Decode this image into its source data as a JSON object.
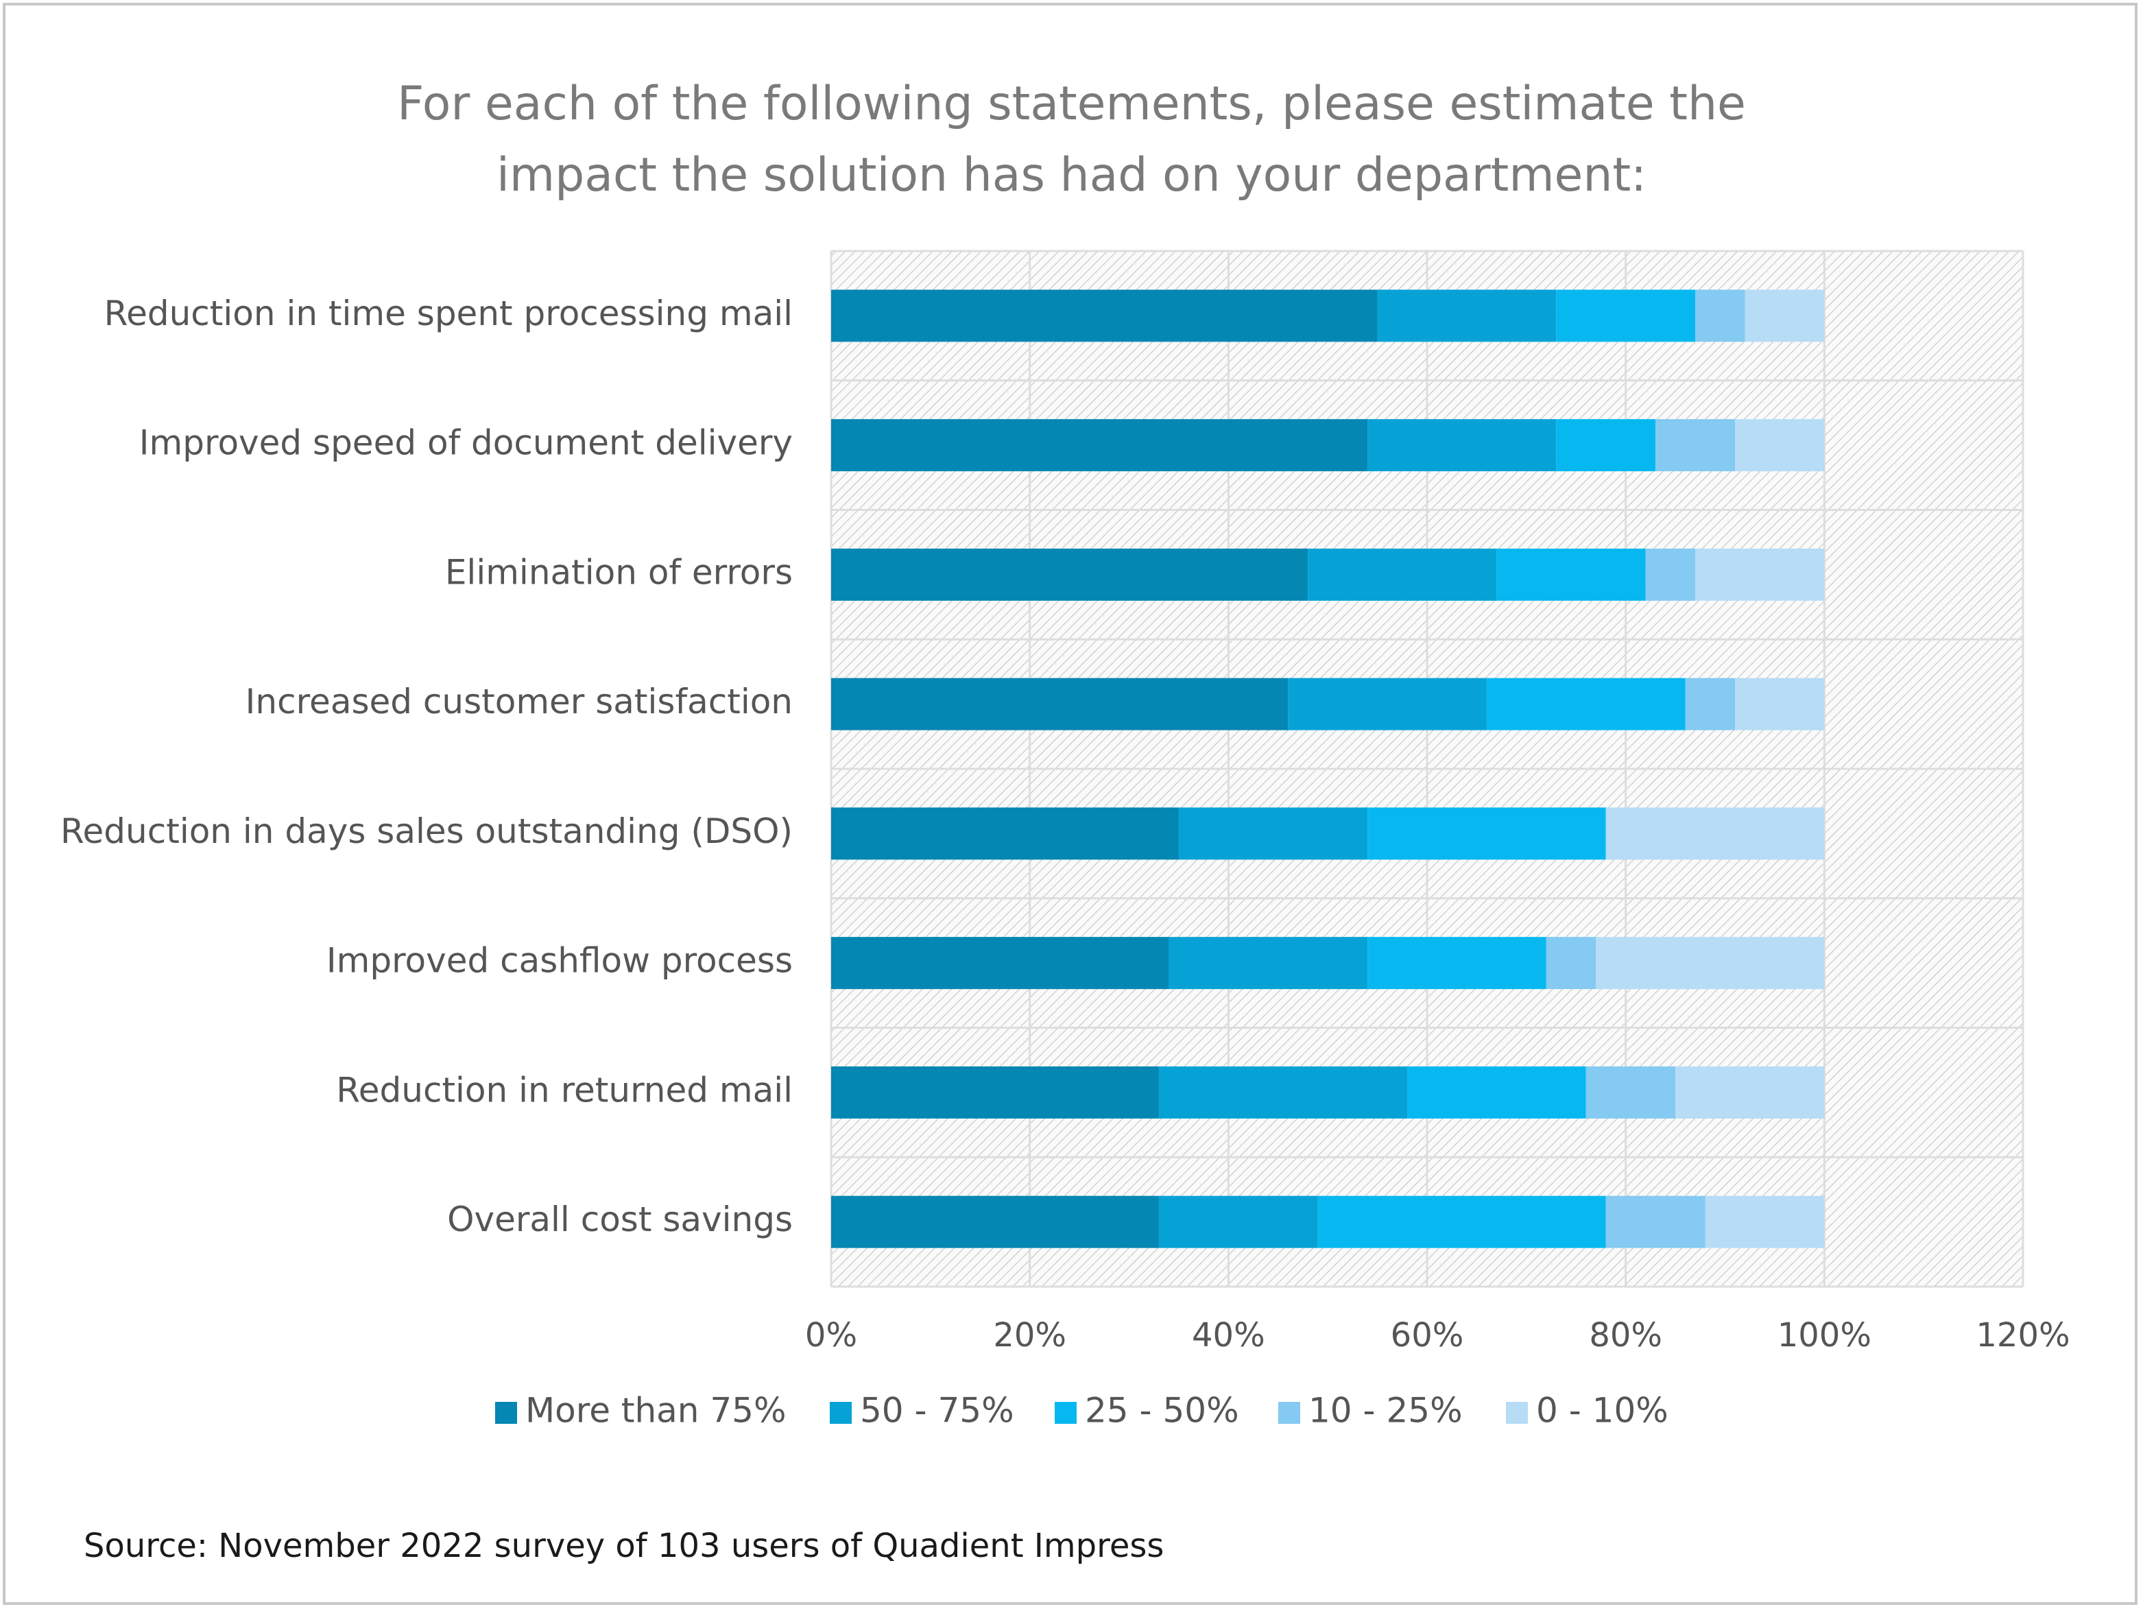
{
  "chart_data": {
    "type": "bar",
    "orientation": "horizontal",
    "stacked": true,
    "title_lines": [
      "For each of the following statements, please estimate the",
      "impact the solution has had on your department:"
    ],
    "categories": [
      "Reduction in time spent processing mail",
      "Improved speed of document delivery",
      "Elimination of errors",
      "Increased customer satisfaction",
      "Reduction in days sales outstanding (DSO)",
      "Improved cashflow process",
      "Reduction in returned mail",
      "Overall cost savings"
    ],
    "series": [
      {
        "name": "More than 75%",
        "color": "#0487b3",
        "values": [
          55,
          54,
          48,
          46,
          35,
          34,
          33,
          33
        ]
      },
      {
        "name": "50 - 75%",
        "color": "#06a2d6",
        "values": [
          18,
          19,
          19,
          20,
          19,
          20,
          25,
          16
        ]
      },
      {
        "name": "25 - 50%",
        "color": "#07b8f0",
        "values": [
          14,
          10,
          15,
          20,
          24,
          18,
          18,
          29
        ]
      },
      {
        "name": "10 - 25%",
        "color": "#84caf2",
        "values": [
          5,
          8,
          5,
          5,
          0,
          5,
          9,
          10
        ]
      },
      {
        "name": "0 - 10%",
        "color": "#b6dcf6",
        "values": [
          8,
          9,
          13,
          9,
          22,
          23,
          15,
          12
        ]
      }
    ],
    "x_ticks": [
      "0%",
      "20%",
      "40%",
      "60%",
      "80%",
      "100%",
      "120%"
    ],
    "xlim": [
      0,
      120
    ],
    "grid": true,
    "legend_position": "bottom"
  },
  "source_note": "Source: November 2022 survey of 103 users of Quadient Impress"
}
